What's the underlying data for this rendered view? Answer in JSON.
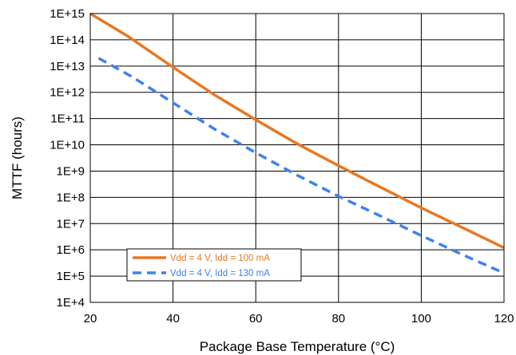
{
  "chart_data": {
    "type": "line",
    "xlabel": "Package Base Temperature (°C)",
    "ylabel": "MTTF (hours)",
    "xlim": [
      20,
      120
    ],
    "ylim_log10": [
      4,
      15
    ],
    "y_scale": "log",
    "grid": true,
    "legend_placement": "bottom-left",
    "x_ticks": [
      "20",
      "40",
      "60",
      "80",
      "100",
      "120"
    ],
    "x_tick_values": [
      20,
      40,
      60,
      80,
      100,
      120
    ],
    "y_ticks": [
      "1E+4",
      "1E+5",
      "1E+6",
      "1E+7",
      "1E+8",
      "1E+9",
      "1E+10",
      "1E+11",
      "1E+12",
      "1E+13",
      "1E+14",
      "1E+15"
    ],
    "y_tick_exponents": [
      4,
      5,
      6,
      7,
      8,
      9,
      10,
      11,
      12,
      13,
      14,
      15
    ],
    "series": [
      {
        "name": "Vdd = 4 V, Idd = 100 mA",
        "color": "#E87722",
        "dash": "solid",
        "points": [
          {
            "x": 20,
            "y": 1000000000000000.0
          },
          {
            "x": 29,
            "y": 140000000000000.0
          },
          {
            "x": 40,
            "y": 9000000000000.0
          },
          {
            "x": 50,
            "y": 800000000000.0
          },
          {
            "x": 60,
            "y": 90000000000.0
          },
          {
            "x": 70,
            "y": 11000000000.0
          },
          {
            "x": 80,
            "y": 1600000000.0
          },
          {
            "x": 90,
            "y": 250000000.0
          },
          {
            "x": 100,
            "y": 40000000.0
          },
          {
            "x": 110,
            "y": 7000000.0
          },
          {
            "x": 120,
            "y": 1200000.0
          }
        ]
      },
      {
        "name": "Vdd = 4 V, Idd = 130 mA",
        "color": "#3C82F0",
        "dash": "dashed",
        "points": [
          {
            "x": 22,
            "y": 20000000000000.0
          },
          {
            "x": 30,
            "y": 4000000000000.0
          },
          {
            "x": 40,
            "y": 400000000000.0
          },
          {
            "x": 50,
            "y": 40000000000.0
          },
          {
            "x": 60,
            "y": 5000000000.0
          },
          {
            "x": 70,
            "y": 700000000.0
          },
          {
            "x": 80,
            "y": 110000000.0
          },
          {
            "x": 90,
            "y": 20000000.0
          },
          {
            "x": 100,
            "y": 3500000.0
          },
          {
            "x": 110,
            "y": 650000.0
          },
          {
            "x": 120,
            "y": 130000.0
          }
        ]
      }
    ]
  }
}
